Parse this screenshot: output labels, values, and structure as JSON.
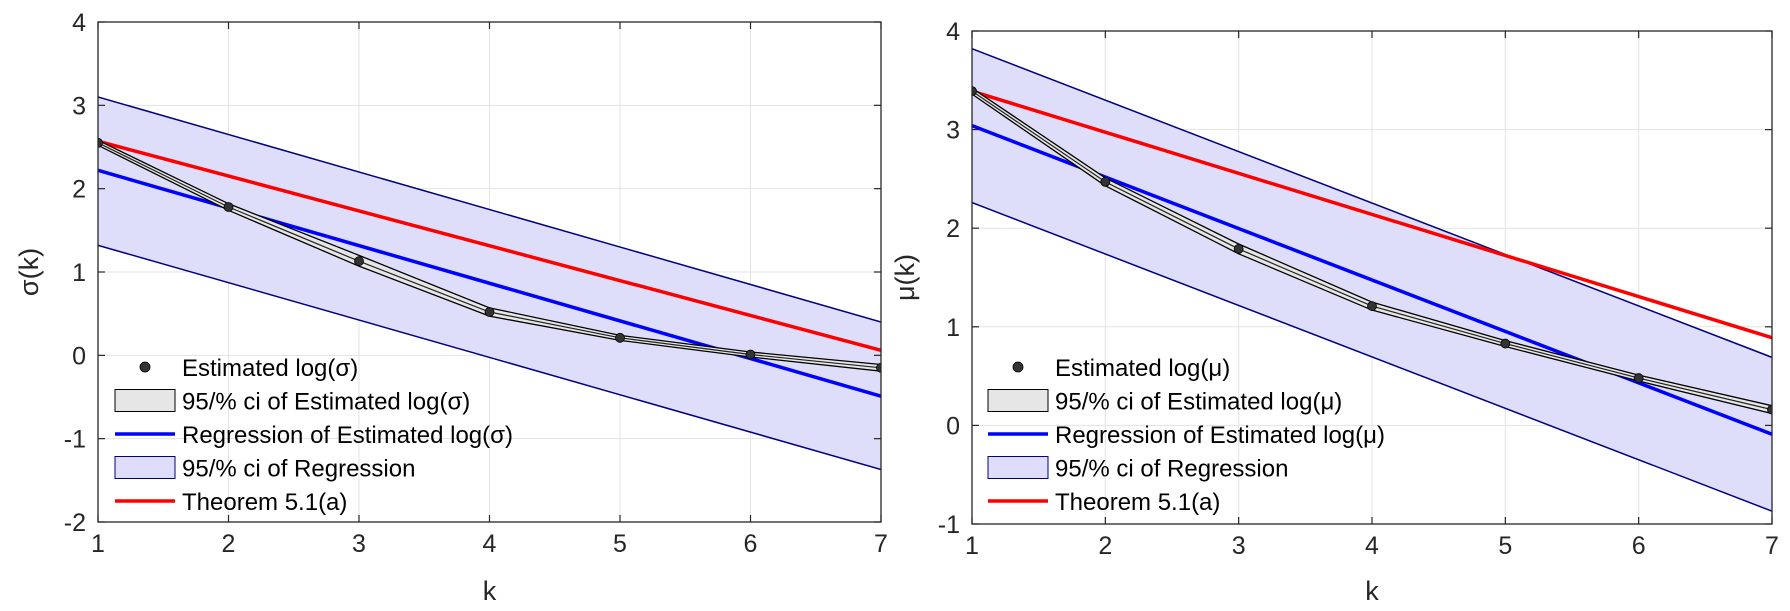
{
  "chart_data": [
    {
      "type": "line",
      "xlabel": "k",
      "ylabel": "σ(k)",
      "xlim": [
        1,
        7
      ],
      "ylim": [
        -2,
        4
      ],
      "xticks": [
        "1",
        "2",
        "3",
        "4",
        "5",
        "6",
        "7"
      ],
      "yticks": [
        "-2",
        "-1",
        "0",
        "1",
        "2",
        "3",
        "4"
      ],
      "grid": true,
      "legend_position": "bottom-left",
      "legend": [
        {
          "key": "points",
          "label": "Estimated log(σ)"
        },
        {
          "key": "ci_est",
          "label": "95/% ci of Estimated log(σ)"
        },
        {
          "key": "regression",
          "label": "Regression of Estimated log(σ)"
        },
        {
          "key": "ci_reg",
          "label": "95/% ci of Regression"
        },
        {
          "key": "theorem",
          "label": "Theorem 5.1(a)"
        }
      ],
      "x": [
        1,
        2,
        3,
        4,
        5,
        6,
        7
      ],
      "estimated": [
        2.55,
        1.78,
        1.13,
        0.52,
        0.21,
        0.01,
        -0.15
      ],
      "ci_est_upper": [
        2.58,
        1.82,
        1.2,
        0.57,
        0.24,
        0.04,
        -0.11
      ],
      "ci_est_lower": [
        2.52,
        1.74,
        1.07,
        0.47,
        0.18,
        -0.02,
        -0.19
      ],
      "regression": {
        "x": [
          1,
          7
        ],
        "y": [
          2.22,
          -0.49
        ]
      },
      "ci_reg_upper": {
        "x": [
          1,
          7
        ],
        "y": [
          3.1,
          0.4
        ]
      },
      "ci_reg_lower": {
        "x": [
          1,
          7
        ],
        "y": [
          1.32,
          -1.37
        ]
      },
      "theorem": {
        "x": [
          1,
          7
        ],
        "y": [
          2.57,
          0.06
        ]
      },
      "colors": {
        "points": "#333333",
        "ci_est": "#e6e6e6",
        "regression": "#0000ff",
        "ci_reg": "#dedefa",
        "ci_reg_edge": "#000080",
        "theorem": "#ff0000"
      }
    },
    {
      "type": "line",
      "xlabel": "k",
      "ylabel": "μ(k)",
      "xlim": [
        1,
        7
      ],
      "ylim": [
        -1,
        4
      ],
      "xticks": [
        "1",
        "2",
        "3",
        "4",
        "5",
        "6",
        "7"
      ],
      "yticks": [
        "-1",
        "0",
        "1",
        "2",
        "3",
        "4"
      ],
      "grid": true,
      "legend_position": "bottom-left",
      "legend": [
        {
          "key": "points",
          "label": "Estimated log(μ)"
        },
        {
          "key": "ci_est",
          "label": "95/% ci of Estimated log(μ)"
        },
        {
          "key": "regression",
          "label": "Regression of Estimated log(μ)"
        },
        {
          "key": "ci_reg",
          "label": "95/% ci of Regression"
        },
        {
          "key": "theorem",
          "label": "Theorem 5.1(a)"
        }
      ],
      "x": [
        1,
        2,
        3,
        4,
        5,
        6,
        7
      ],
      "estimated": [
        3.39,
        2.47,
        1.79,
        1.21,
        0.83,
        0.48,
        0.16
      ],
      "ci_est_upper": [
        3.42,
        2.51,
        1.84,
        1.25,
        0.86,
        0.51,
        0.2
      ],
      "ci_est_lower": [
        3.36,
        2.43,
        1.74,
        1.17,
        0.8,
        0.45,
        0.12
      ],
      "regression": {
        "x": [
          1,
          7
        ],
        "y": [
          3.04,
          -0.09
        ]
      },
      "ci_reg_upper": {
        "x": [
          1,
          7
        ],
        "y": [
          3.82,
          0.69
        ]
      },
      "ci_reg_lower": {
        "x": [
          1,
          7
        ],
        "y": [
          2.26,
          -0.87
        ]
      },
      "theorem": {
        "x": [
          1,
          7
        ],
        "y": [
          3.39,
          0.89
        ]
      },
      "colors": {
        "points": "#333333",
        "ci_est": "#e6e6e6",
        "regression": "#0000ff",
        "ci_reg": "#dedefa",
        "ci_reg_edge": "#000080",
        "theorem": "#ff0000"
      }
    }
  ]
}
